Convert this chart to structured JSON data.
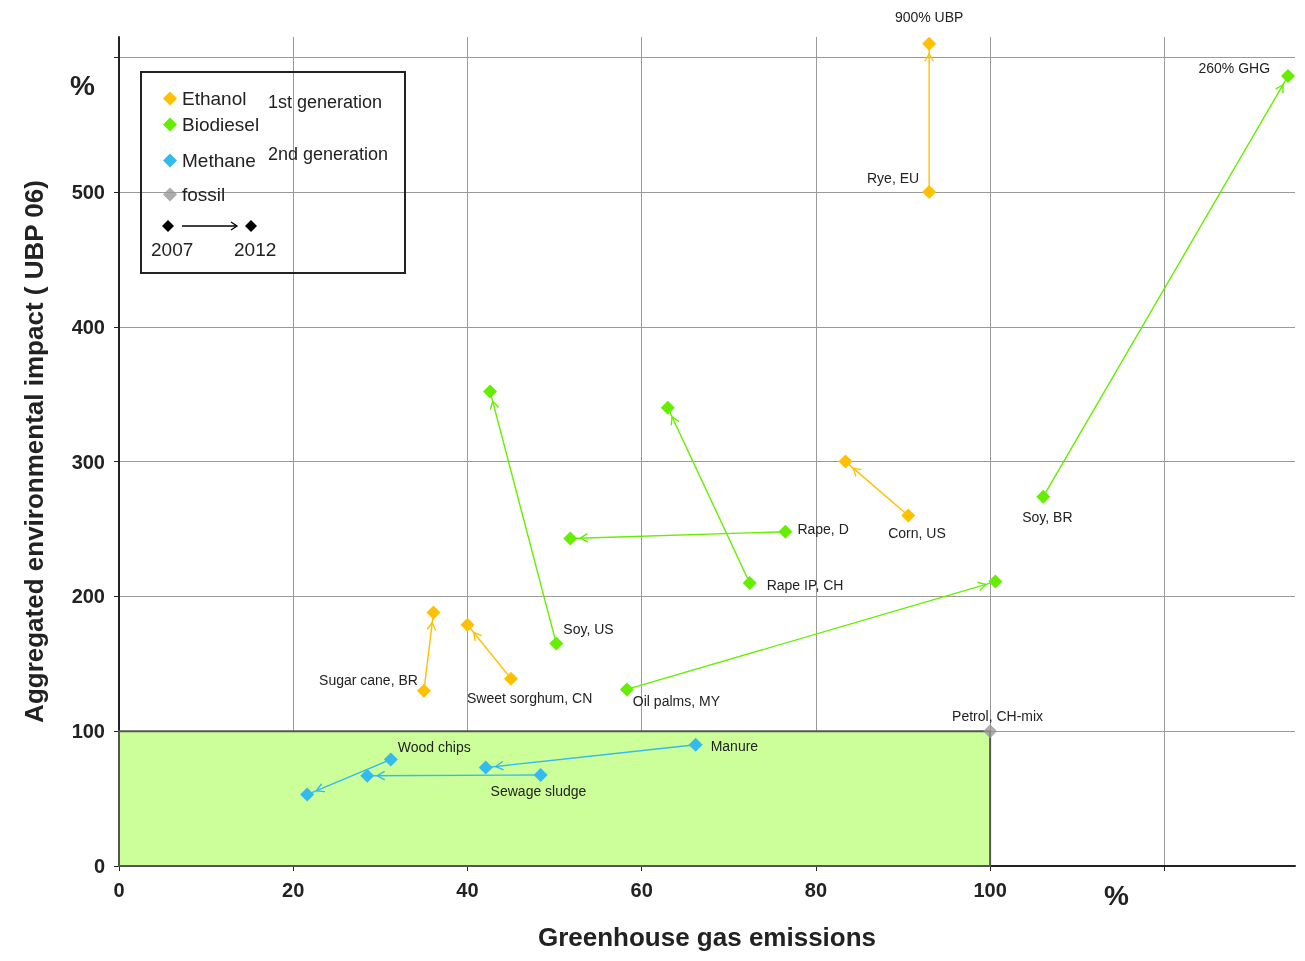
{
  "chart_data": {
    "type": "line",
    "xlabel": "Greenhouse gas emissions",
    "ylabel": "Aggregated environmental impact ( UBP 06)",
    "xlim": [
      0,
      135
    ],
    "xticks": [
      0,
      20,
      40,
      60,
      80,
      100,
      {
        "value": 120,
        "label": null
      }
    ],
    "ylim": [
      0,
      615
    ],
    "yticks": [
      0,
      100,
      200,
      300,
      400,
      500,
      {
        "value": 600,
        "label": null
      }
    ],
    "grid": true,
    "legend": "top left",
    "marker": "diamond",
    "line_style": "solid",
    "series": [
      {
        "name": "Ethanol",
        "color": "#ffc000",
        "x": [
          93,
          93,
          null,
          90.6,
          83.4,
          null,
          45,
          40,
          null,
          35,
          36.1
        ],
        "values": [
          500,
          610,
          null,
          260,
          300,
          null,
          139,
          179,
          null,
          130,
          188
        ]
      },
      {
        "name": "Biodiesel",
        "color": "#66ee00",
        "x": [
          50.2,
          42.6,
          null,
          76.5,
          51.8,
          null,
          72.4,
          63,
          null,
          58.3,
          100.6,
          null,
          106.1,
          134.2
        ],
        "values": [
          165,
          352,
          null,
          248,
          243,
          null,
          210,
          340,
          null,
          131,
          211,
          null,
          274,
          586
        ]
      },
      {
        "name": "Methane",
        "color": "#33bbee",
        "x": [
          31.2,
          21.6,
          null,
          48.4,
          28.5,
          null,
          66.2,
          42.1
        ],
        "values": [
          79,
          53,
          null,
          67.5,
          67,
          null,
          90,
          73
        ]
      },
      {
        "name": "fossil",
        "type": "scatter",
        "color": "#999999",
        "x": [
          100
        ],
        "values": [
          100
        ]
      }
    ],
    "bands": [
      {
        "axis": "y",
        "from": 0,
        "to": 100,
        "color": "#ccff99"
      }
    ],
    "annotations": [
      {
        "text": "Rye, EU",
        "x": 93,
        "y": 500
      },
      {
        "text": "900% UBP",
        "x": 93,
        "y": 610
      },
      {
        "text": "Corn, US",
        "x": 90.6,
        "y": 260
      },
      {
        "text": "Sweet sorghum, CN",
        "x": 45,
        "y": 139
      },
      {
        "text": "Sugar cane, BR",
        "x": 35,
        "y": 130
      },
      {
        "text": "Soy, US",
        "x": 50.2,
        "y": 165
      },
      {
        "text": "Rape, D",
        "x": 76.5,
        "y": 248
      },
      {
        "text": "Rape IP, CH",
        "x": 72.4,
        "y": 210
      },
      {
        "text": "Oil palms, MY",
        "x": 58.3,
        "y": 131
      },
      {
        "text": "Soy, BR",
        "x": 106.1,
        "y": 274
      },
      {
        "text": "260% GHG",
        "x": 134.2,
        "y": 586
      },
      {
        "text": "Wood chips",
        "x": 31.2,
        "y": 79
      },
      {
        "text": "Sewage sludge",
        "x": 48.4,
        "y": 67.5
      },
      {
        "text": "Manure",
        "x": 66.2,
        "y": 90
      },
      {
        "text": "Petrol, CH-mix",
        "x": 100,
        "y": 100
      },
      "%",
      "%",
      "1st generation",
      "2nd generation",
      "2007",
      "2012"
    ]
  }
}
